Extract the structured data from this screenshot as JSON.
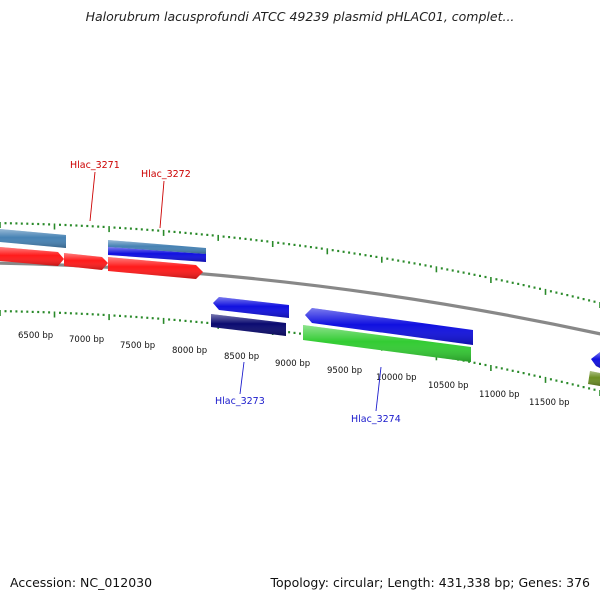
{
  "title": "Halorubrum lacusprofundi ATCC 49239 plasmid pHLAC01, complet...",
  "accession_label": "Accession: NC_012030",
  "summary_label": "Topology: circular; Length: 431,338 bp; Genes: 376",
  "colors": {
    "backbone": "#888888",
    "tick": "#2a8a2a",
    "label_forward": "#cc0000",
    "label_reverse": "#1a1acc",
    "red": "#ff1a1a",
    "steelblue": "#4682b4",
    "blue": "#1010e0",
    "navy": "#0a0a70",
    "green": "#33cc33",
    "olive": "#6b8e23"
  },
  "scale_labels": [
    "6500 bp",
    "7000 bp",
    "7500 bp",
    "8000 bp",
    "8500 bp",
    "9000 bp",
    "9500 bp",
    "10000 bp",
    "10500 bp",
    "11000 bp",
    "11500 bp"
  ],
  "gene_labels": [
    {
      "text": "Hlac_3271",
      "color": "label_forward"
    },
    {
      "text": "Hlac_3272",
      "color": "label_forward"
    },
    {
      "text": "Hlac_3273",
      "color": "label_reverse"
    },
    {
      "text": "Hlac_3274",
      "color": "label_reverse"
    }
  ]
}
